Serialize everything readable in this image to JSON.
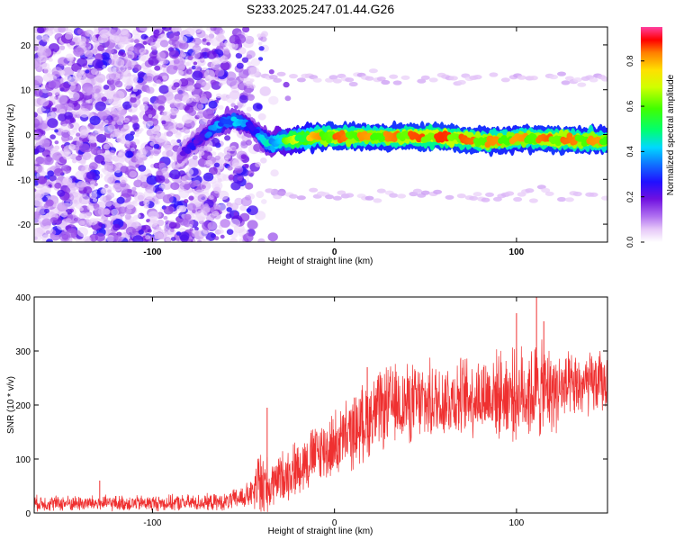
{
  "title": "S233.2025.247.01.44.G26",
  "chart_data": [
    {
      "type": "heatmap",
      "xlabel": "Height of straight line (km)",
      "ylabel": "Frequency (Hz)",
      "xlim": [
        -165,
        150
      ],
      "ylim": [
        -24,
        24
      ],
      "xticks": [
        -100,
        0,
        100
      ],
      "yticks": [
        -20,
        -10,
        0,
        10,
        20
      ],
      "colorbar": {
        "label": "Normalized spectral amplitude",
        "range": [
          0,
          0.95
        ],
        "ticks": [
          0.0,
          0.2,
          0.4,
          0.6,
          0.8
        ]
      },
      "ridge": {
        "x": [
          -85,
          -80,
          -75,
          -70,
          -65,
          -60,
          -55,
          -50,
          -45,
          -40,
          -35,
          -30,
          -20,
          -10,
          0,
          20,
          40,
          60,
          80,
          100,
          120,
          150
        ],
        "y": [
          -5,
          -3,
          -1,
          0,
          2,
          3,
          3,
          2.5,
          1.5,
          -1,
          -2,
          -1.5,
          -1,
          -0.5,
          -0.5,
          -0.5,
          -0.5,
          -0.5,
          -1.5,
          -1,
          -1,
          -1.5
        ],
        "amplitude": [
          0.2,
          0.25,
          0.3,
          0.35,
          0.4,
          0.45,
          0.45,
          0.4,
          0.35,
          0.45,
          0.5,
          0.6,
          0.75,
          0.85,
          0.9,
          0.85,
          0.9,
          0.92,
          0.88,
          0.85,
          0.9,
          0.85
        ]
      },
      "sidebands": [
        {
          "name": "upper",
          "y": 12.5,
          "x_range": [
            -38,
            150
          ],
          "amplitude": 0.05
        },
        {
          "name": "lower",
          "y": -13.5,
          "x_range": [
            -38,
            150
          ],
          "amplitude": 0.05
        }
      ]
    },
    {
      "type": "line",
      "xlabel": "Height of straight line (km)",
      "ylabel": "SNR (10 * v/v)",
      "xlim": [
        -165,
        150
      ],
      "ylim": [
        0,
        400
      ],
      "xticks": [
        -100,
        0,
        100
      ],
      "yticks": [
        0,
        100,
        200,
        300,
        400
      ],
      "color": "#ef3030",
      "trend": {
        "x": [
          -165,
          -130,
          -100,
          -60,
          -45,
          -40,
          -36,
          -30,
          -20,
          -10,
          0,
          10,
          20,
          30,
          50,
          70,
          90,
          100,
          110,
          130,
          150
        ],
        "mean": [
          18,
          18,
          18,
          20,
          35,
          60,
          45,
          65,
          85,
          110,
          125,
          150,
          180,
          200,
          205,
          215,
          220,
          220,
          225,
          230,
          245
        ],
        "spread": [
          14,
          14,
          14,
          15,
          25,
          90,
          40,
          45,
          50,
          55,
          60,
          65,
          70,
          70,
          70,
          70,
          75,
          80,
          90,
          60,
          55
        ]
      },
      "spikes": [
        {
          "x": -129,
          "y": 60
        },
        {
          "x": -37,
          "y": 195
        },
        {
          "x": 18,
          "y": 270
        },
        {
          "x": 100,
          "y": 370
        },
        {
          "x": 111,
          "y": 400
        },
        {
          "x": 115,
          "y": 355
        }
      ]
    }
  ]
}
